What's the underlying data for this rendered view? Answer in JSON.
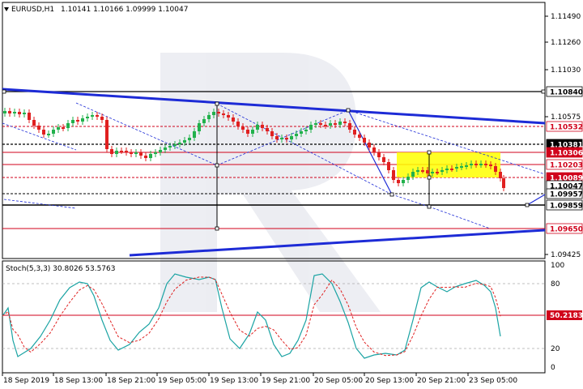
{
  "header": {
    "symbol_label": "EURUSD,H1",
    "ohlc": "1.10141 1.10166 1.09999 1.10047"
  },
  "stoch": {
    "label": "Stoch(5,3,3) 30.8026 53.5763",
    "level_value": "50.2183",
    "axis_ticks": [
      "100",
      "80",
      "20",
      "0"
    ]
  },
  "price_axis": {
    "ticks": [
      "1.11490",
      "1.11260",
      "1.11030",
      "1.10575",
      "1.09425"
    ],
    "boxes": [
      {
        "text": "1.10840",
        "bg": "#ffffff",
        "fg": "#000000",
        "border": "#000000"
      },
      {
        "text": "1.10532",
        "bg": "#ffffff",
        "fg": "#d0021b",
        "border": "#d0021b"
      },
      {
        "text": "1.10381",
        "bg": "#000000",
        "fg": "#ffffff",
        "border": "#000000"
      },
      {
        "text": "1.10306",
        "bg": "#d0021b",
        "fg": "#ffffff",
        "border": "#d0021b"
      },
      {
        "text": "1.10203",
        "bg": "#ffffff",
        "fg": "#d0021b",
        "border": "#d0021b"
      },
      {
        "text": "1.10089",
        "bg": "#d0021b",
        "fg": "#ffffff",
        "border": "#d0021b"
      },
      {
        "text": "1.10047",
        "bg": "#ffffff",
        "fg": "#000000",
        "border": "#000000"
      },
      {
        "text": "1.09957",
        "bg": "#ffffff",
        "fg": "#000000",
        "border": "#000000"
      },
      {
        "text": "1.09859",
        "bg": "#ffffff",
        "fg": "#000000",
        "border": "#000000"
      },
      {
        "text": "1.09650",
        "bg": "#ffffff",
        "fg": "#d0021b",
        "border": "#d0021b"
      }
    ]
  },
  "time_axis": {
    "labels": [
      "18 Sep 2019",
      "18 Sep 13:00",
      "18 Sep 21:00",
      "19 Sep 05:00",
      "19 Sep 13:00",
      "19 Sep 21:00",
      "20 Sep 05:00",
      "20 Sep 13:00",
      "20 Sep 21:00",
      "23 Sep 05:00"
    ]
  },
  "colors": {
    "bull": "#22b14c",
    "bear": "#e02020",
    "channel": "#1d2bd6",
    "level_red": "#d0021b",
    "highlight": "#ffff00"
  }
}
